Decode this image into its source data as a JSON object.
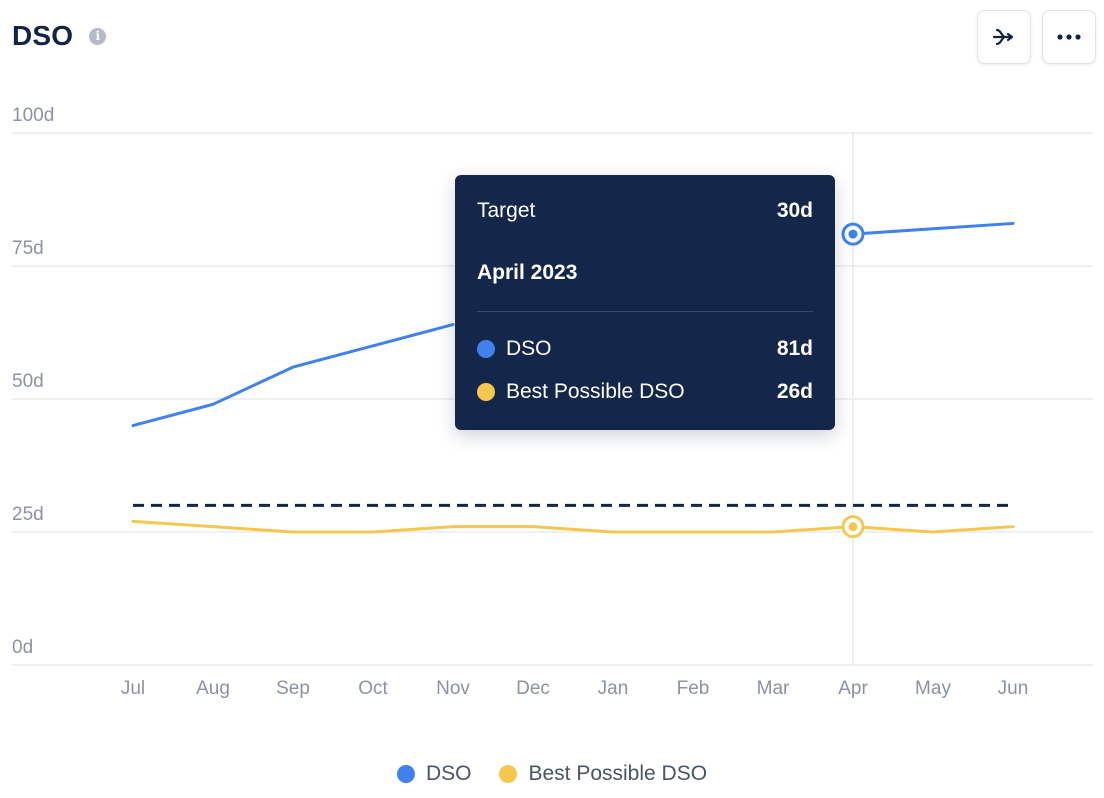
{
  "header": {
    "title": "DSO",
    "info_icon": "info-icon"
  },
  "toolbar": {
    "share_icon": "branch-icon",
    "more_icon": "more-horizontal-icon"
  },
  "colors": {
    "dso": "#4081f0",
    "best": "#f4c84f",
    "target": "#14264a",
    "grid": "#e9ebef",
    "text": "#8a92a3"
  },
  "chart_data": {
    "type": "line",
    "categories": [
      "Jul",
      "Aug",
      "Sep",
      "Oct",
      "Nov",
      "Dec",
      "Jan",
      "Feb",
      "Mar",
      "Apr",
      "May",
      "Jun"
    ],
    "y_tick_labels": [
      "0d",
      "25d",
      "50d",
      "75d",
      "100d"
    ],
    "y_ticks": [
      0,
      25,
      50,
      75,
      100
    ],
    "ylim": [
      0,
      100
    ],
    "grid": true,
    "series": [
      {
        "name": "DSO",
        "color": "#4081f0",
        "values": [
          45,
          49,
          56,
          60,
          64,
          null,
          null,
          null,
          null,
          81,
          82,
          83
        ]
      },
      {
        "name": "Best Possible DSO",
        "color": "#f4c84f",
        "values": [
          27,
          26,
          25,
          25,
          26,
          26,
          25,
          25,
          25,
          26,
          25,
          26
        ]
      }
    ],
    "target": {
      "label": "Target",
      "value": 30
    },
    "highlight_index": 9,
    "tooltip": {
      "target_label": "Target",
      "target_value": "30d",
      "period": "April 2023",
      "rows": [
        {
          "label": "DSO",
          "value": "81d",
          "color": "#4081f0"
        },
        {
          "label": "Best Possible DSO",
          "value": "26d",
          "color": "#f4c84f"
        }
      ]
    },
    "legend": [
      {
        "label": "DSO",
        "color": "#4081f0"
      },
      {
        "label": "Best Possible DSO",
        "color": "#f4c84f"
      }
    ]
  }
}
